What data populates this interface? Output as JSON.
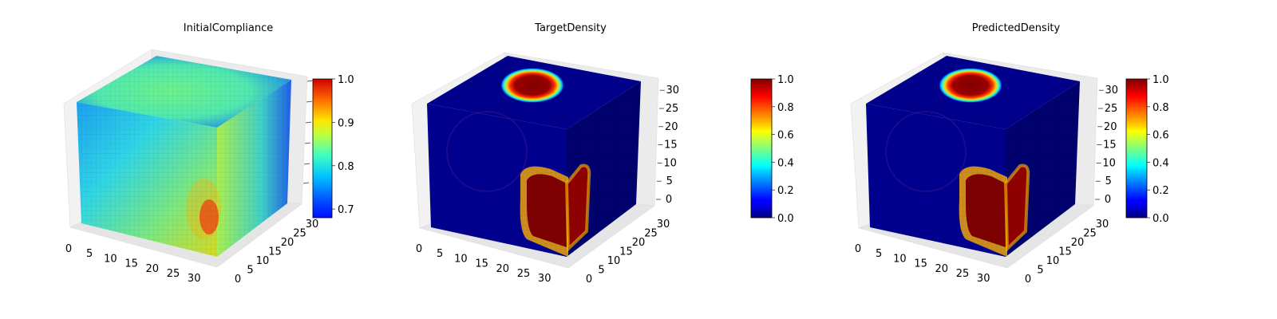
{
  "chart_data": [
    {
      "type": "heatmap",
      "title": "InitialCompliance",
      "colormap": "jet",
      "x_ticks": [
        "0",
        "5",
        "10",
        "15",
        "20",
        "25",
        "30"
      ],
      "y_ticks": [
        "0",
        "5",
        "10",
        "15",
        "20",
        "25",
        "30"
      ],
      "z_ticks": [],
      "colorbar": {
        "min": 0.68,
        "max": 1.0,
        "ticks": [
          "0.7",
          "0.8",
          "0.9",
          "1.0"
        ],
        "tick_values": [
          0.7,
          0.8,
          0.9,
          1.0
        ]
      },
      "value_range": [
        0.68,
        1.0
      ]
    },
    {
      "type": "heatmap",
      "title": "TargetDensity",
      "colormap": "jet",
      "x_ticks": [
        "0",
        "5",
        "10",
        "15",
        "20",
        "25",
        "30"
      ],
      "y_ticks": [
        "0",
        "5",
        "10",
        "15",
        "20",
        "25",
        "30"
      ],
      "z_ticks": [
        "0",
        "5",
        "10",
        "15",
        "20",
        "25",
        "30"
      ],
      "colorbar": {
        "min": 0.0,
        "max": 1.0,
        "ticks": [
          "0.0",
          "0.2",
          "0.4",
          "0.6",
          "0.8",
          "1.0"
        ],
        "tick_values": [
          0,
          0.2,
          0.4,
          0.6,
          0.8,
          1.0
        ]
      },
      "value_range": [
        0.0,
        1.0
      ]
    },
    {
      "type": "heatmap",
      "title": "PredictedDensity",
      "colormap": "jet",
      "x_ticks": [
        "0",
        "5",
        "10",
        "15",
        "20",
        "25",
        "30"
      ],
      "y_ticks": [
        "0",
        "5",
        "10",
        "15",
        "20",
        "25",
        "30"
      ],
      "z_ticks": [
        "0",
        "5",
        "10",
        "15",
        "20",
        "25",
        "30"
      ],
      "colorbar": {
        "min": 0.0,
        "max": 1.0,
        "ticks": [
          "0.0",
          "0.2",
          "0.4",
          "0.6",
          "0.8",
          "1.0"
        ],
        "tick_values": [
          0,
          0.2,
          0.4,
          0.6,
          0.8,
          1.0
        ]
      },
      "value_range": [
        0.0,
        1.0
      ]
    }
  ]
}
